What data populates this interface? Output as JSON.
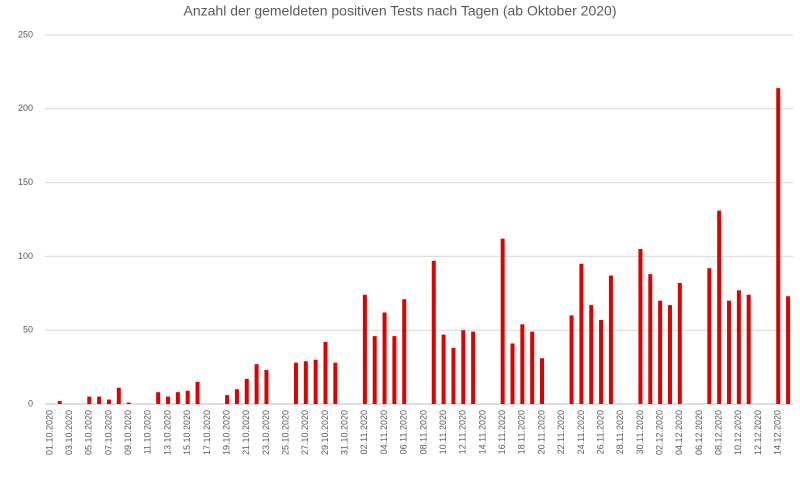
{
  "chart_data": {
    "type": "bar",
    "title": "Anzahl der gemeldeten positiven Tests nach Tagen (ab Oktober 2020)",
    "categories": [
      "01.10.2020",
      null,
      "03.10.2020",
      null,
      "05.10.2020",
      null,
      "07.10.2020",
      null,
      "09.10.2020",
      null,
      "11.10.2020",
      null,
      "13.10.2020",
      null,
      "15.10.2020",
      null,
      "17.10.2020",
      null,
      "19.10.2020",
      null,
      "21.10.2020",
      null,
      "23.10.2020",
      null,
      "25.10.2020",
      null,
      "27.10.2020",
      null,
      "29.10.2020",
      null,
      "31.10.2020",
      null,
      "02.11.2020",
      null,
      "04.11.2020",
      null,
      "06.11.2020",
      null,
      "08.11.2020",
      null,
      "10.11.2020",
      null,
      "12.11.2020",
      null,
      "14.11.2020",
      null,
      "16.11.2020",
      null,
      "18.11.2020",
      null,
      "20.11.2020",
      null,
      "22.11.2020",
      null,
      "24.11.2020",
      null,
      "26.11.2020",
      null,
      "28.11.2020",
      null,
      "30.11.2020",
      null,
      "02.12.2020",
      null,
      "04.12.2020",
      null,
      "06.12.2020",
      null,
      "08.12.2020",
      null,
      "10.12.2020",
      null,
      "12.12.2020",
      null,
      "14.12.2020",
      null
    ],
    "values": [
      0,
      2,
      0,
      0,
      5,
      5,
      3,
      11,
      1,
      0,
      0,
      8,
      5,
      8,
      9,
      15,
      0,
      0,
      6,
      10,
      17,
      27,
      23,
      0,
      0,
      28,
      29,
      30,
      42,
      28,
      0,
      0,
      74,
      46,
      62,
      46,
      71,
      0,
      0,
      97,
      47,
      38,
      50,
      49,
      0,
      0,
      112,
      41,
      54,
      49,
      31,
      0,
      0,
      60,
      95,
      67,
      57,
      87,
      0,
      0,
      105,
      88,
      70,
      67,
      82,
      0,
      0,
      92,
      131,
      70,
      77,
      74,
      0,
      0,
      214,
      73
    ],
    "color": "#e00000",
    "ylim": [
      0,
      250
    ],
    "yticks": [
      0,
      50,
      100,
      150,
      200,
      250
    ],
    "grid": true
  }
}
